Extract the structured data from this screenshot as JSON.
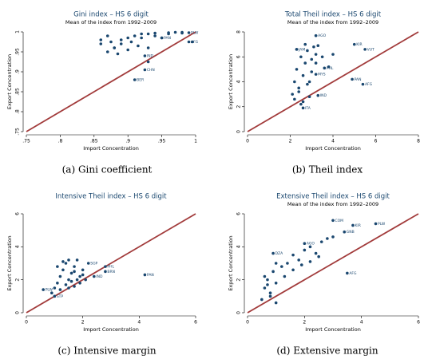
{
  "chart_data": [
    {
      "type": "scatter",
      "title": "Gini index – HS 6 digit",
      "subtitle": "Mean of the  index from 1992–2009",
      "xlabel": "Import Concentration",
      "ylabel": "Export Concentration",
      "caption": "(a) Gini coefficient",
      "color": "#1a476f",
      "diagonal_color": "#a23b3b",
      "diagonal": true,
      "xlim": [
        0.75,
        1
      ],
      "ylim": [
        0.75,
        1
      ],
      "xticks": [
        {
          "value": 0.75,
          "label": ".75"
        },
        {
          "value": 0.8,
          "label": ".8"
        },
        {
          "value": 0.85,
          "label": ".85"
        },
        {
          "value": 0.9,
          "label": ".9"
        },
        {
          "value": 0.95,
          "label": ".95"
        },
        1
      ],
      "yticks": [
        {
          "value": 0.75,
          "label": ".75"
        },
        {
          "value": 0.8,
          "label": ".8"
        },
        {
          "value": 0.85,
          "label": ".85"
        },
        {
          "value": 0.9,
          "label": ".9"
        },
        {
          "value": 0.95,
          "label": ".95"
        },
        1
      ],
      "x": [
        0.86,
        0.87,
        0.88,
        0.89,
        0.9,
        0.91,
        0.92,
        0.93,
        0.94,
        0.95,
        0.96,
        0.97,
        0.98,
        0.99,
        0.995,
        0.87,
        0.885,
        0.9,
        0.915,
        0.93,
        0.86,
        0.875,
        0.89,
        0.905,
        0.92,
        0.94,
        0.96,
        0.98,
        0.925,
        0.925,
        0.91,
        0.95,
        0.99,
        0.93,
        0.88
      ],
      "y": [
        0.98,
        0.99,
        0.96,
        0.97,
        0.985,
        0.99,
        0.995,
        0.995,
        0.997,
        0.985,
        0.998,
        0.999,
        0.999,
        0.998,
        0.975,
        0.95,
        0.945,
        0.955,
        0.965,
        0.96,
        0.97,
        0.975,
        0.98,
        0.975,
        0.985,
        0.99,
        0.995,
        0.997,
        0.94,
        0.905,
        0.88,
        0.985,
        0.975,
        0.925,
        0.96
      ],
      "labels": [
        null,
        null,
        null,
        null,
        null,
        null,
        null,
        null,
        null,
        null,
        null,
        null,
        null,
        "PLW",
        null,
        null,
        null,
        null,
        null,
        null,
        null,
        null,
        null,
        null,
        null,
        null,
        null,
        null,
        "IND",
        "CHN",
        "BER",
        "PAN",
        "AFG",
        null,
        null
      ]
    },
    {
      "type": "scatter",
      "title": "Total Theil index – HS 6 digit",
      "subtitle": "Mean of the  index from 1992–2009",
      "xlabel": "Import Concentration",
      "ylabel": "Export Concentration",
      "caption": "(b) Theil index",
      "color": "#1a476f",
      "diagonal_color": "#a23b3b",
      "diagonal": true,
      "xlim": [
        0,
        8
      ],
      "ylim": [
        0,
        8
      ],
      "xticks": [
        0,
        2,
        4,
        6,
        8
      ],
      "yticks": [
        0,
        2,
        4,
        6,
        8
      ],
      "x": [
        2.1,
        2.2,
        2.3,
        2.4,
        2.5,
        2.6,
        2.7,
        2.8,
        2.9,
        3.0,
        3.1,
        3.2,
        2.2,
        2.4,
        2.6,
        2.8,
        3.0,
        3.3,
        3.5,
        3.8,
        4.0,
        2.3,
        2.5,
        2.7,
        2.9,
        3.2,
        3.2,
        4.9,
        5.4,
        3.3,
        2.6,
        3.2,
        3.6,
        5.5,
        5.0,
        2.3
      ],
      "y": [
        3.0,
        4.0,
        5.0,
        3.5,
        6.0,
        4.5,
        5.5,
        6.5,
        4.0,
        5.8,
        6.8,
        6.2,
        2.6,
        3.2,
        2.4,
        3.8,
        4.8,
        6.9,
        6.0,
        5.2,
        6.2,
        6.6,
        2.2,
        7.0,
        2.8,
        5.5,
        7.7,
        4.2,
        3.8,
        2.9,
        1.9,
        4.6,
        5.1,
        6.6,
        7.0,
        6.6
      ],
      "labels": [
        null,
        null,
        null,
        null,
        null,
        null,
        null,
        null,
        null,
        null,
        null,
        null,
        null,
        null,
        null,
        null,
        null,
        null,
        null,
        null,
        null,
        null,
        null,
        null,
        null,
        null,
        "AGO",
        "PAN",
        "AFG",
        "IND",
        "ITA",
        "MYS",
        "PHL",
        "VUT",
        "KIR",
        "JAM"
      ]
    },
    {
      "type": "scatter",
      "title": "Intensive Theil index – HS 6 digit",
      "subtitle": null,
      "xlabel": "Import Concentration",
      "ylabel": "Export Concentration",
      "caption": "(c) Intensive margin",
      "color": "#1a476f",
      "diagonal_color": "#a23b3b",
      "diagonal": true,
      "xlim": [
        0,
        6
      ],
      "ylim": [
        0,
        6
      ],
      "xticks": [
        0,
        2,
        4,
        6
      ],
      "yticks": [
        0,
        2,
        4,
        6
      ],
      "x": [
        1.0,
        1.1,
        1.2,
        1.3,
        1.4,
        1.5,
        1.6,
        1.7,
        1.8,
        1.9,
        2.0,
        1.2,
        1.4,
        1.6,
        1.8,
        2.0,
        1.3,
        1.5,
        1.7,
        1.9,
        2.1,
        0.9,
        1.1,
        1.5,
        1.7,
        4.2,
        2.2,
        2.8,
        2.4,
        2.8,
        0.6,
        1.0
      ],
      "y": [
        1.5,
        1.8,
        2.2,
        2.6,
        3.0,
        2.0,
        2.4,
        2.8,
        3.2,
        2.2,
        2.6,
        1.4,
        1.7,
        1.9,
        2.0,
        2.3,
        3.1,
        3.2,
        2.5,
        1.8,
        2.0,
        1.2,
        2.8,
        1.5,
        1.6,
        2.3,
        3.0,
        2.5,
        2.2,
        2.8,
        1.4,
        1.0
      ],
      "labels": [
        null,
        null,
        null,
        null,
        null,
        null,
        null,
        null,
        null,
        null,
        null,
        null,
        null,
        null,
        null,
        null,
        null,
        null,
        null,
        null,
        null,
        null,
        null,
        null,
        null,
        "PAN",
        "SGP",
        "BRN",
        "IND",
        "PHL",
        "PLW",
        "STP"
      ]
    },
    {
      "type": "scatter",
      "title": "Extensive Theil index – HS 6 digit",
      "subtitle": "Mean of the  index from 1992–2009",
      "xlabel": "Import Concentration",
      "ylabel": "Export Concentration",
      "caption": "(d) Extensive margin",
      "color": "#1a476f",
      "diagonal_color": "#a23b3b",
      "diagonal": true,
      "xlim": [
        0,
        6
      ],
      "ylim": [
        0,
        6
      ],
      "xticks": [
        0,
        2,
        4,
        6
      ],
      "yticks": [
        0,
        2,
        4,
        6
      ],
      "x": [
        0.5,
        0.6,
        0.7,
        0.8,
        0.9,
        1.0,
        1.2,
        1.4,
        1.6,
        1.8,
        2.0,
        2.2,
        2.4,
        2.6,
        2.8,
        3.0,
        0.6,
        0.8,
        1.0,
        1.3,
        1.6,
        1.9,
        2.2,
        2.5,
        1.0,
        0.7,
        3.0,
        3.7,
        4.5,
        0.9,
        3.5,
        3.4,
        2.0
      ],
      "y": [
        0.8,
        1.5,
        2.0,
        1.2,
        2.5,
        1.8,
        2.8,
        3.0,
        3.5,
        3.2,
        3.8,
        4.0,
        3.6,
        4.3,
        4.5,
        4.6,
        2.2,
        1.0,
        3.0,
        2.2,
        2.6,
        2.9,
        3.1,
        3.4,
        0.6,
        1.7,
        5.6,
        5.3,
        5.4,
        3.6,
        2.4,
        4.9,
        4.2
      ],
      "labels": [
        null,
        null,
        null,
        null,
        null,
        null,
        null,
        null,
        null,
        null,
        null,
        null,
        null,
        null,
        null,
        null,
        null,
        null,
        null,
        null,
        null,
        null,
        null,
        null,
        null,
        null,
        "COM",
        "KIR",
        "PLW",
        "DZA",
        "AFG",
        "GNB",
        "AGO"
      ]
    }
  ]
}
